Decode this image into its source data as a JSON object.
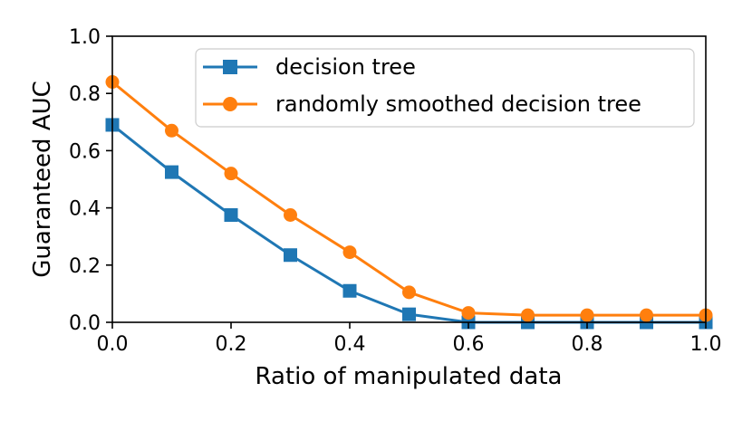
{
  "chart_data": {
    "type": "line",
    "title": "",
    "xlabel": "Ratio of manipulated data",
    "ylabel": "Guaranteed AUC",
    "xlim": [
      0.0,
      1.0
    ],
    "ylim": [
      0.0,
      1.0
    ],
    "xticks": [
      "0.0",
      "0.2",
      "0.4",
      "0.6",
      "0.8",
      "1.0"
    ],
    "yticks": [
      "0.0",
      "0.2",
      "0.4",
      "0.6",
      "0.8",
      "1.0"
    ],
    "grid": false,
    "legend_position": "top-right",
    "x": [
      0.0,
      0.1,
      0.2,
      0.3,
      0.4,
      0.5,
      0.6,
      0.7,
      0.8,
      0.9,
      1.0
    ],
    "series": [
      {
        "name": "decision tree",
        "color": "#1f77b4",
        "marker": "square",
        "values": [
          0.69,
          0.525,
          0.375,
          0.235,
          0.11,
          0.028,
          0.0,
          0.0,
          0.0,
          0.0,
          0.0
        ]
      },
      {
        "name": "randomly smoothed decision tree",
        "color": "#ff7f0e",
        "marker": "circle",
        "values": [
          0.84,
          0.67,
          0.52,
          0.375,
          0.245,
          0.105,
          0.033,
          0.025,
          0.025,
          0.025,
          0.025
        ]
      }
    ]
  }
}
